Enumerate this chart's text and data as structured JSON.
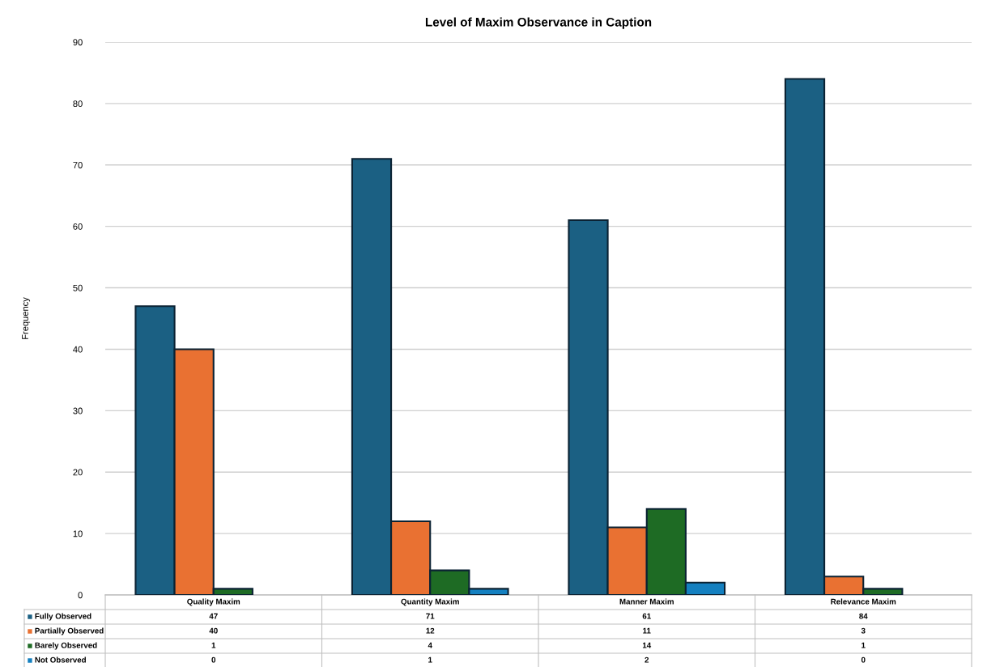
{
  "chart_data": {
    "type": "bar",
    "title": "Level of Maxim Observance in Caption",
    "ylabel": "Frequency",
    "categories": [
      "Quality Maxim",
      "Quantity Maxim",
      "Manner Maxim",
      "Relevance Maxim"
    ],
    "series": [
      {
        "name": "Fully Observed",
        "color": "#1b6083",
        "values": [
          47,
          71,
          61,
          84
        ]
      },
      {
        "name": "Partially Observed",
        "color": "#e97132",
        "values": [
          40,
          12,
          11,
          3
        ]
      },
      {
        "name": "Barely Observed",
        "color": "#1e6b24",
        "values": [
          1,
          4,
          14,
          1
        ]
      },
      {
        "name": "Not Observed",
        "color": "#1480c0",
        "values": [
          0,
          1,
          2,
          0
        ]
      }
    ],
    "ylim": [
      0,
      90
    ],
    "yticks": [
      0,
      10,
      20,
      30,
      40,
      50,
      60,
      70,
      80,
      90
    ],
    "grid": "y",
    "data_labels": true,
    "legend": "bottom left"
  }
}
